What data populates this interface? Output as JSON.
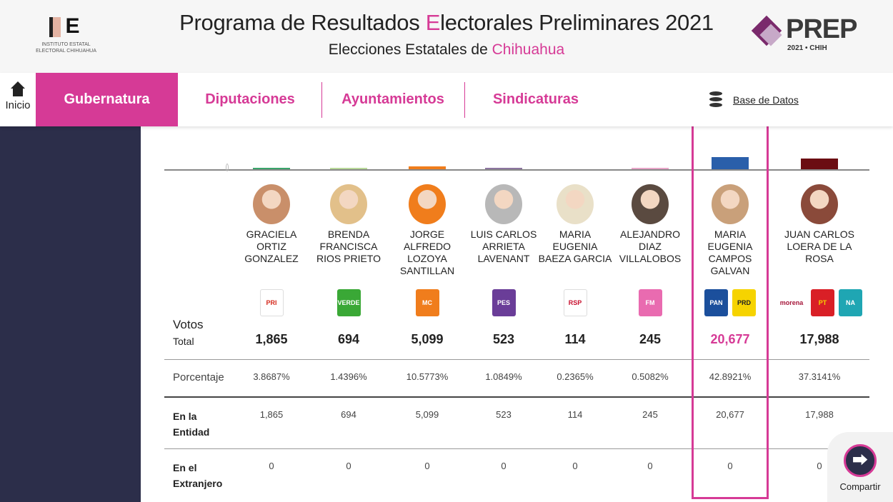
{
  "header": {
    "iee_logo_text": "INSTITUTO ESTATAL ELECTORAL CHIHUAHUA",
    "title_pre": "Programa de Resultados ",
    "title_accent": "E",
    "title_post": "lectorales Preliminares 2021",
    "subtitle_pre": "Elecciones Estatales de ",
    "subtitle_accent": "Chihuahua",
    "prep_logo": "PREP",
    "prep_sub": "2021 • CHIH"
  },
  "nav": {
    "home": "Inicio",
    "tabs": [
      "Gubernatura",
      "Diputaciones",
      "Ayuntamientos",
      "Sindicaturas"
    ],
    "active": "Gubernatura",
    "database": "Base de Datos"
  },
  "table": {
    "labels": {
      "votos": "Votos",
      "total": "Total",
      "porcentaje": "Porcentaje",
      "entidad": "En la Entidad",
      "extranjero": "En el Extranjero"
    },
    "zero_label": "0",
    "candidates": [
      {
        "name": "GRACIELA ORTIZ GONZALEZ",
        "parties": [
          {
            "label": "PRI",
            "bg": "#fff",
            "fg": "#d52b1e"
          }
        ],
        "bar_color": "#3aa56b",
        "total": "1,865",
        "votes": 1865,
        "pct": "3.8687%",
        "entidad": "1,865",
        "extranjero": "0",
        "photo": "#c98f6a"
      },
      {
        "name": "BRENDA FRANCISCA RIOS PRIETO",
        "parties": [
          {
            "label": "VERDE",
            "bg": "#3aa836",
            "fg": "#fff"
          }
        ],
        "bar_color": "#b9d99a",
        "total": "694",
        "votes": 694,
        "pct": "1.4396%",
        "entidad": "694",
        "extranjero": "0",
        "photo": "#e2c08a"
      },
      {
        "name": "JORGE ALFREDO LOZOYA SANTILLAN",
        "parties": [
          {
            "label": "MC",
            "bg": "#f07d1c",
            "fg": "#fff"
          }
        ],
        "bar_color": "#f07d1c",
        "total": "5,099",
        "votes": 5099,
        "pct": "10.5773%",
        "entidad": "5,099",
        "extranjero": "0",
        "photo": "#f07d1c"
      },
      {
        "name": "LUIS CARLOS ARRIETA LAVENANT",
        "parties": [
          {
            "label": "PES",
            "bg": "#6a3d98",
            "fg": "#fff"
          }
        ],
        "bar_color": "#8c75a0",
        "total": "523",
        "votes": 523,
        "pct": "1.0849%",
        "entidad": "523",
        "extranjero": "0",
        "photo": "#b8b8b8"
      },
      {
        "name": "MARIA EUGENIA BAEZA GARCIA",
        "parties": [
          {
            "label": "RSP",
            "bg": "#fff",
            "fg": "#c8102e"
          }
        ],
        "bar_color": "#ffffff",
        "total": "114",
        "votes": 114,
        "pct": "0.2365%",
        "entidad": "114",
        "extranjero": "0",
        "photo": "#e9e0c8"
      },
      {
        "name": "ALEJANDRO DIAZ VILLALOBOS",
        "parties": [
          {
            "label": "FM",
            "bg": "#e96bb0",
            "fg": "#fff"
          }
        ],
        "bar_color": "#e8a6c8",
        "total": "245",
        "votes": 245,
        "pct": "0.5082%",
        "entidad": "245",
        "extranjero": "0",
        "photo": "#5a4a40"
      },
      {
        "name": "MARIA EUGENIA CAMPOS GALVAN",
        "parties": [
          {
            "label": "PAN",
            "bg": "#1b4f9c",
            "fg": "#fff"
          },
          {
            "label": "PRD",
            "bg": "#f6d300",
            "fg": "#222"
          }
        ],
        "bar_color": "#2a5faa",
        "total": "20,677",
        "votes": 20677,
        "pct": "42.8921%",
        "entidad": "20,677",
        "extranjero": "0",
        "photo": "#c9a07a",
        "winner": true
      },
      {
        "name": "JUAN CARLOS LOERA DE LA ROSA",
        "parties": [
          {
            "label": "morena",
            "bg": "#fff",
            "fg": "#a6163a"
          },
          {
            "label": "PT",
            "bg": "#d91f26",
            "fg": "#f6d300"
          },
          {
            "label": "NA",
            "bg": "#1fa6b3",
            "fg": "#fff"
          }
        ],
        "bar_color": "#6b0d12",
        "total": "17,988",
        "votes": 17988,
        "pct": "37.3141%",
        "entidad": "17,988",
        "extranjero": "0",
        "photo": "#8a4a3a"
      }
    ]
  },
  "share": {
    "label": "Compartir"
  },
  "colors": {
    "accent": "#d63a96",
    "sidebar": "#2c2e4a"
  }
}
